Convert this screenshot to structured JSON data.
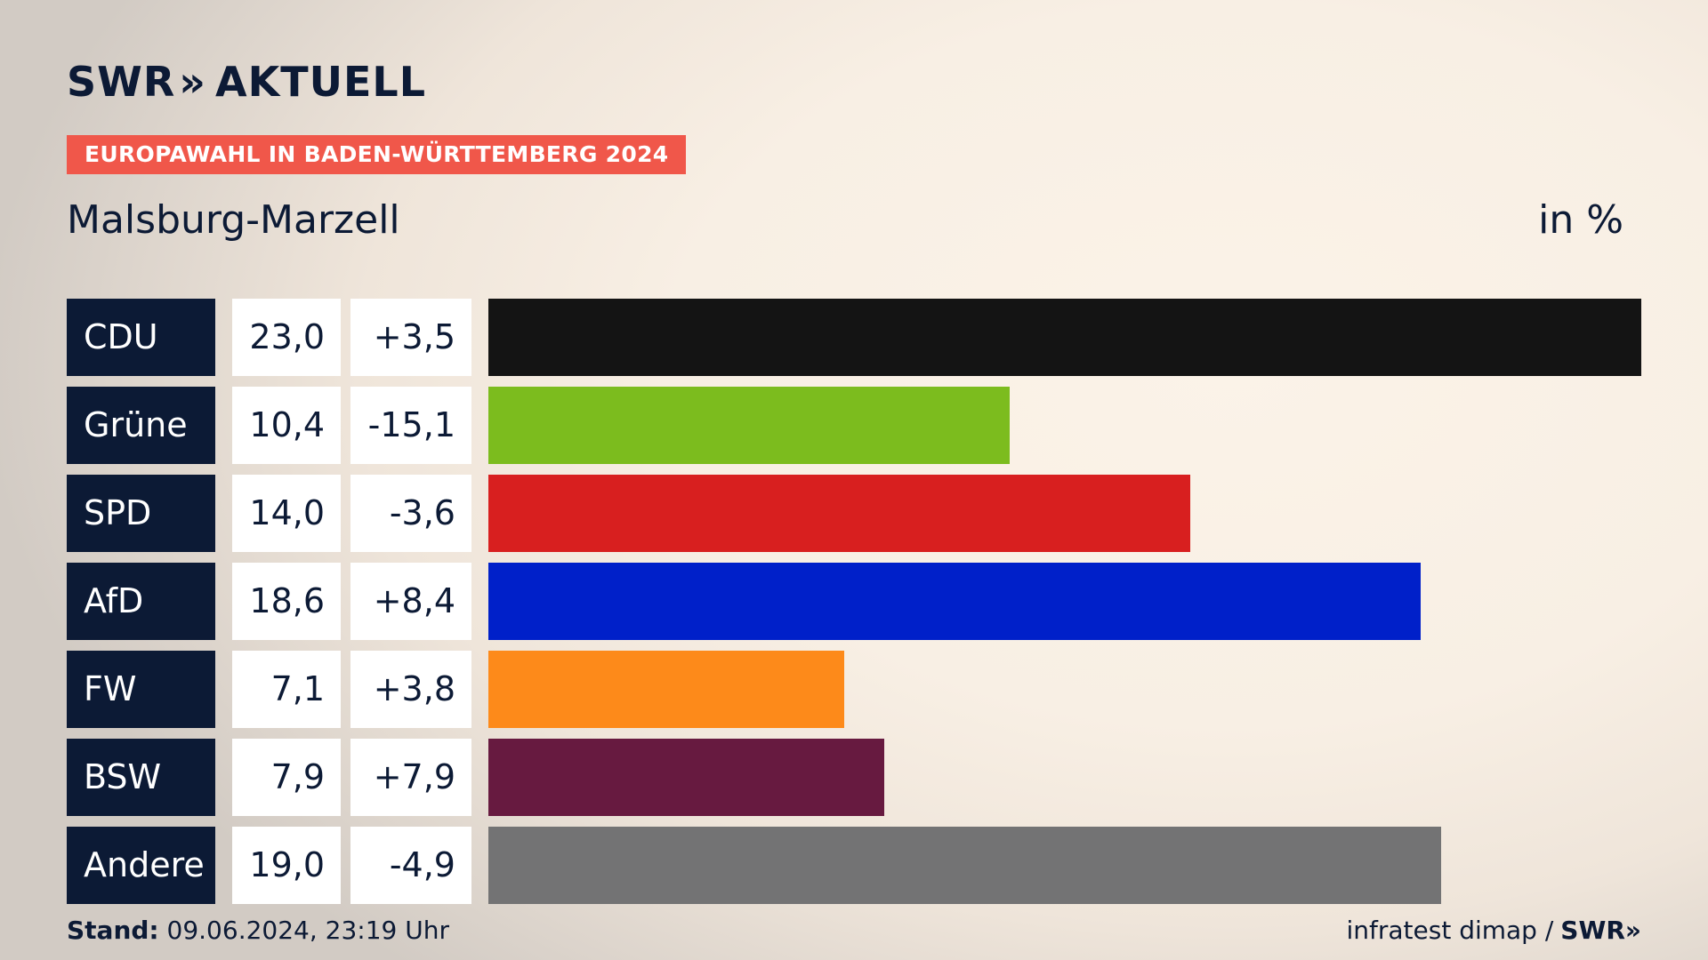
{
  "brand": {
    "logo_left": "SWR",
    "logo_chevron": "»",
    "logo_right": "AKTUELL",
    "color_navy": "#0c1a35",
    "color_tag": "#f0574a"
  },
  "header": {
    "tag": "EUROPAWAHL IN BADEN-WÜRTTEMBERG 2024",
    "place": "Malsburg-Marzell",
    "unit": "in %"
  },
  "chart_data": {
    "type": "bar",
    "orientation": "horizontal",
    "title": "Malsburg-Marzell",
    "unit_label": "in %",
    "xlim": [
      0,
      23.0
    ],
    "categories": [
      "CDU",
      "Grüne",
      "SPD",
      "AfD",
      "FW",
      "BSW",
      "Andere"
    ],
    "values": [
      23.0,
      10.4,
      14.0,
      18.6,
      7.1,
      7.9,
      19.0
    ],
    "value_labels": [
      "23,0",
      "10,4",
      "14,0",
      "18,6",
      "7,1",
      "7,9",
      "19,0"
    ],
    "diff_labels": [
      "+3,5",
      "-15,1",
      "-3,6",
      "+8,4",
      "+3,8",
      "+7,9",
      "-4,9"
    ],
    "diffs": [
      3.5,
      -15.1,
      -3.6,
      8.4,
      3.8,
      7.9,
      -4.9
    ],
    "colors": [
      "#141414",
      "#7cbc1e",
      "#d81f1f",
      "#0020c9",
      "#fd8a1a",
      "#671a40",
      "#737374"
    ]
  },
  "footer": {
    "stand_label": "Stand:",
    "stand_value": "09.06.2024, 23:19 Uhr",
    "source": "infratest dimap /",
    "source_brand": "SWR»"
  }
}
